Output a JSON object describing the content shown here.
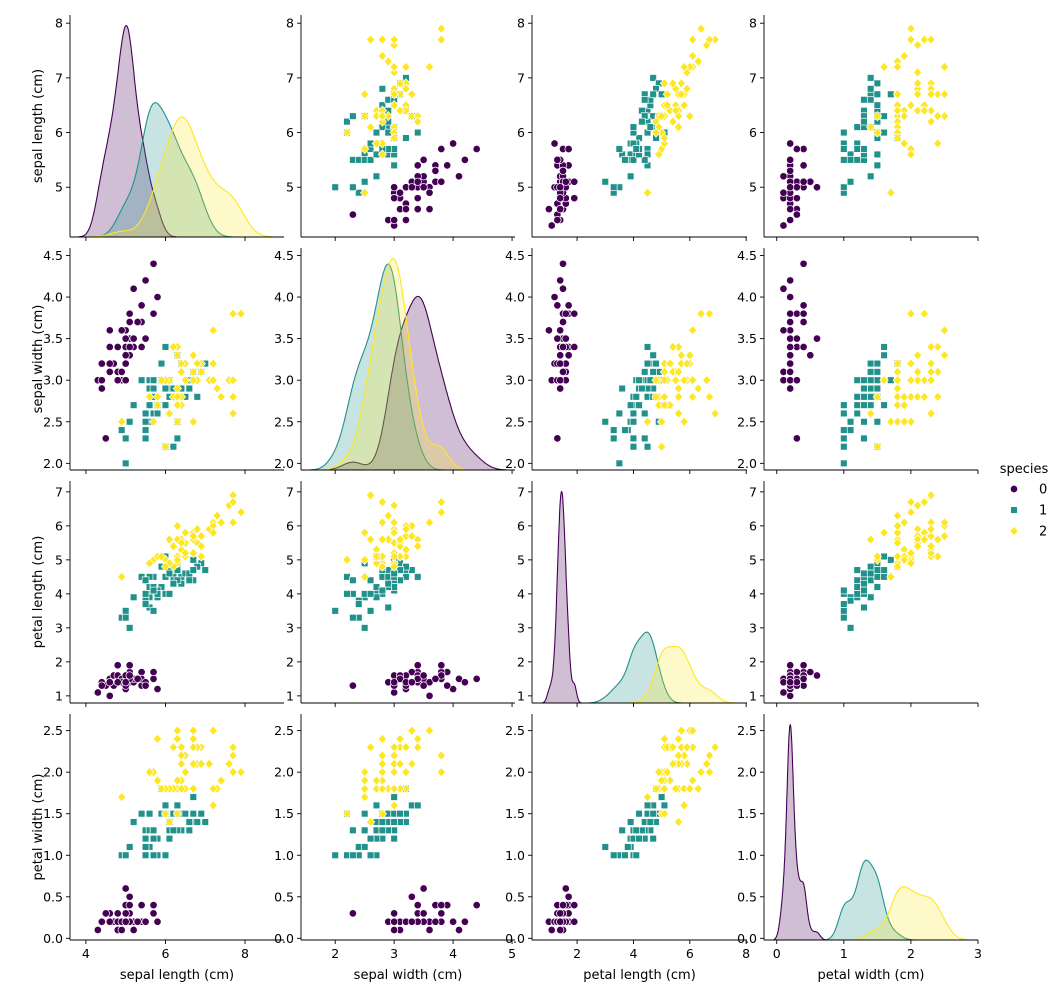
{
  "chart_data": {
    "type": "pairplot",
    "subtypes": {
      "diagonal": "kde",
      "offdiagonal": "scatter"
    },
    "variables": [
      "sepal length (cm)",
      "sepal width (cm)",
      "petal length (cm)",
      "petal width (cm)"
    ],
    "axis_limits": [
      [
        3.6,
        8.98
      ],
      [
        1.42,
        5.05
      ],
      [
        0.4,
        8.03
      ],
      [
        -0.19,
        3.0
      ]
    ],
    "row_limits": [
      [
        4.09,
        8.15
      ],
      [
        1.92,
        4.59
      ],
      [
        0.79,
        7.32
      ],
      [
        -0.02,
        2.7
      ]
    ],
    "x_ticks": [
      [
        "4",
        "6",
        "8"
      ],
      [
        "2",
        "3",
        "4",
        "5"
      ],
      [
        "2",
        "4",
        "6",
        "8"
      ],
      [
        "0",
        "1",
        "2",
        "3"
      ]
    ],
    "y_ticks": [
      [
        "5",
        "6",
        "7",
        "8"
      ],
      [
        "2.0",
        "2.5",
        "3.0",
        "3.5",
        "4.0",
        "4.5"
      ],
      [
        "1",
        "2",
        "3",
        "4",
        "5",
        "6",
        "7"
      ],
      [
        "0.0",
        "0.5",
        "1.0",
        "1.5",
        "2.0",
        "2.5"
      ]
    ],
    "grid": false,
    "legend": {
      "title": "species",
      "placement": "right",
      "entries": [
        "0",
        "1",
        "2"
      ]
    },
    "hue_colors": [
      "#440154",
      "#21918c",
      "#fde725"
    ],
    "hue_markers": [
      "circle",
      "square",
      "diamond"
    ],
    "points": {
      "0": [
        [
          5.1,
          3.5,
          1.4,
          0.2
        ],
        [
          4.9,
          3.0,
          1.4,
          0.2
        ],
        [
          4.7,
          3.2,
          1.3,
          0.2
        ],
        [
          4.6,
          3.1,
          1.5,
          0.2
        ],
        [
          5.0,
          3.6,
          1.4,
          0.2
        ],
        [
          5.4,
          3.9,
          1.7,
          0.4
        ],
        [
          4.6,
          3.4,
          1.4,
          0.3
        ],
        [
          5.0,
          3.4,
          1.5,
          0.2
        ],
        [
          4.4,
          2.9,
          1.4,
          0.2
        ],
        [
          4.9,
          3.1,
          1.5,
          0.1
        ],
        [
          5.4,
          3.7,
          1.5,
          0.2
        ],
        [
          4.8,
          3.4,
          1.6,
          0.2
        ],
        [
          4.8,
          3.0,
          1.4,
          0.1
        ],
        [
          4.3,
          3.0,
          1.1,
          0.1
        ],
        [
          5.8,
          4.0,
          1.2,
          0.2
        ],
        [
          5.7,
          4.4,
          1.5,
          0.4
        ],
        [
          5.4,
          3.9,
          1.3,
          0.4
        ],
        [
          5.1,
          3.5,
          1.4,
          0.3
        ],
        [
          5.7,
          3.8,
          1.7,
          0.3
        ],
        [
          5.1,
          3.8,
          1.5,
          0.3
        ],
        [
          5.4,
          3.4,
          1.7,
          0.2
        ],
        [
          5.1,
          3.7,
          1.5,
          0.4
        ],
        [
          4.6,
          3.6,
          1.0,
          0.2
        ],
        [
          5.1,
          3.3,
          1.7,
          0.5
        ],
        [
          4.8,
          3.4,
          1.9,
          0.2
        ],
        [
          5.0,
          3.0,
          1.6,
          0.2
        ],
        [
          5.0,
          3.4,
          1.6,
          0.4
        ],
        [
          5.2,
          3.5,
          1.5,
          0.2
        ],
        [
          5.2,
          3.4,
          1.4,
          0.2
        ],
        [
          4.7,
          3.2,
          1.6,
          0.2
        ],
        [
          4.8,
          3.1,
          1.6,
          0.2
        ],
        [
          5.4,
          3.4,
          1.5,
          0.4
        ],
        [
          5.2,
          4.1,
          1.5,
          0.1
        ],
        [
          5.5,
          4.2,
          1.4,
          0.2
        ],
        [
          4.9,
          3.1,
          1.5,
          0.2
        ],
        [
          5.0,
          3.2,
          1.2,
          0.2
        ],
        [
          5.5,
          3.5,
          1.3,
          0.2
        ],
        [
          4.9,
          3.6,
          1.4,
          0.1
        ],
        [
          4.4,
          3.0,
          1.3,
          0.2
        ],
        [
          5.1,
          3.4,
          1.5,
          0.2
        ],
        [
          5.0,
          3.5,
          1.3,
          0.3
        ],
        [
          4.5,
          2.3,
          1.3,
          0.3
        ],
        [
          4.4,
          3.2,
          1.3,
          0.2
        ],
        [
          5.0,
          3.5,
          1.6,
          0.6
        ],
        [
          5.1,
          3.8,
          1.9,
          0.4
        ],
        [
          4.8,
          3.0,
          1.4,
          0.3
        ],
        [
          5.1,
          3.8,
          1.6,
          0.2
        ],
        [
          4.6,
          3.2,
          1.4,
          0.2
        ],
        [
          5.3,
          3.7,
          1.5,
          0.2
        ],
        [
          5.0,
          3.3,
          1.4,
          0.2
        ]
      ],
      "1": [
        [
          7.0,
          3.2,
          4.7,
          1.4
        ],
        [
          6.4,
          3.2,
          4.5,
          1.5
        ],
        [
          6.9,
          3.1,
          4.9,
          1.5
        ],
        [
          5.5,
          2.3,
          4.0,
          1.3
        ],
        [
          6.5,
          2.8,
          4.6,
          1.5
        ],
        [
          5.7,
          2.8,
          4.5,
          1.3
        ],
        [
          6.3,
          3.3,
          4.7,
          1.6
        ],
        [
          4.9,
          2.4,
          3.3,
          1.0
        ],
        [
          6.6,
          2.9,
          4.6,
          1.3
        ],
        [
          5.2,
          2.7,
          3.9,
          1.4
        ],
        [
          5.0,
          2.0,
          3.5,
          1.0
        ],
        [
          5.9,
          3.0,
          4.2,
          1.5
        ],
        [
          6.0,
          2.2,
          4.0,
          1.0
        ],
        [
          6.1,
          2.9,
          4.7,
          1.4
        ],
        [
          5.6,
          2.9,
          3.6,
          1.3
        ],
        [
          6.7,
          3.1,
          4.4,
          1.4
        ],
        [
          5.6,
          3.0,
          4.5,
          1.5
        ],
        [
          5.8,
          2.7,
          4.1,
          1.0
        ],
        [
          6.2,
          2.2,
          4.5,
          1.5
        ],
        [
          5.6,
          2.5,
          3.9,
          1.1
        ],
        [
          5.9,
          3.2,
          4.8,
          1.8
        ],
        [
          6.1,
          2.8,
          4.0,
          1.3
        ],
        [
          6.3,
          2.5,
          4.9,
          1.5
        ],
        [
          6.1,
          2.8,
          4.7,
          1.2
        ],
        [
          6.4,
          2.9,
          4.3,
          1.3
        ],
        [
          6.6,
          3.0,
          4.4,
          1.4
        ],
        [
          6.8,
          2.8,
          4.8,
          1.4
        ],
        [
          6.7,
          3.0,
          5.0,
          1.7
        ],
        [
          6.0,
          2.9,
          4.5,
          1.5
        ],
        [
          5.7,
          2.6,
          3.5,
          1.0
        ],
        [
          5.5,
          2.4,
          3.8,
          1.1
        ],
        [
          5.5,
          2.4,
          3.7,
          1.0
        ],
        [
          5.8,
          2.7,
          3.9,
          1.2
        ],
        [
          6.0,
          2.7,
          5.1,
          1.6
        ],
        [
          5.4,
          3.0,
          4.5,
          1.5
        ],
        [
          6.0,
          3.4,
          4.5,
          1.6
        ],
        [
          6.7,
          3.1,
          4.7,
          1.5
        ],
        [
          6.3,
          2.3,
          4.4,
          1.3
        ],
        [
          5.6,
          3.0,
          4.1,
          1.3
        ],
        [
          5.5,
          2.5,
          4.0,
          1.3
        ],
        [
          5.5,
          2.6,
          4.4,
          1.2
        ],
        [
          6.1,
          3.0,
          4.6,
          1.4
        ],
        [
          5.8,
          2.6,
          4.0,
          1.2
        ],
        [
          5.0,
          2.3,
          3.3,
          1.0
        ],
        [
          5.6,
          2.7,
          4.2,
          1.3
        ],
        [
          5.7,
          3.0,
          4.2,
          1.2
        ],
        [
          5.7,
          2.9,
          4.2,
          1.3
        ],
        [
          6.2,
          2.9,
          4.3,
          1.3
        ],
        [
          5.1,
          2.5,
          3.0,
          1.1
        ],
        [
          5.7,
          2.8,
          4.1,
          1.3
        ]
      ],
      "2": [
        [
          6.3,
          3.3,
          6.0,
          2.5
        ],
        [
          5.8,
          2.7,
          5.1,
          1.9
        ],
        [
          7.1,
          3.0,
          5.9,
          2.1
        ],
        [
          6.3,
          2.9,
          5.6,
          1.8
        ],
        [
          6.5,
          3.0,
          5.8,
          2.2
        ],
        [
          7.6,
          3.0,
          6.6,
          2.1
        ],
        [
          4.9,
          2.5,
          4.5,
          1.7
        ],
        [
          7.3,
          2.9,
          6.3,
          1.8
        ],
        [
          6.7,
          2.5,
          5.8,
          1.8
        ],
        [
          7.2,
          3.6,
          6.1,
          2.5
        ],
        [
          6.5,
          3.2,
          5.1,
          2.0
        ],
        [
          6.4,
          2.7,
          5.3,
          1.9
        ],
        [
          6.8,
          3.0,
          5.5,
          2.1
        ],
        [
          5.7,
          2.5,
          5.0,
          2.0
        ],
        [
          5.8,
          2.8,
          5.1,
          2.4
        ],
        [
          6.4,
          3.2,
          5.3,
          2.3
        ],
        [
          6.5,
          3.0,
          5.5,
          1.8
        ],
        [
          7.7,
          3.8,
          6.7,
          2.2
        ],
        [
          7.7,
          2.6,
          6.9,
          2.3
        ],
        [
          6.0,
          2.2,
          5.0,
          1.5
        ],
        [
          6.9,
          3.2,
          5.7,
          2.3
        ],
        [
          5.6,
          2.8,
          4.9,
          2.0
        ],
        [
          7.7,
          2.8,
          6.7,
          2.0
        ],
        [
          6.3,
          2.7,
          4.9,
          1.8
        ],
        [
          6.7,
          3.3,
          5.7,
          2.1
        ],
        [
          7.2,
          3.2,
          6.0,
          1.8
        ],
        [
          6.2,
          2.8,
          4.8,
          1.8
        ],
        [
          6.1,
          3.0,
          4.9,
          1.8
        ],
        [
          6.4,
          2.8,
          5.6,
          2.1
        ],
        [
          7.2,
          3.0,
          5.8,
          1.6
        ],
        [
          7.4,
          2.8,
          6.1,
          1.9
        ],
        [
          7.9,
          3.8,
          6.4,
          2.0
        ],
        [
          6.4,
          2.8,
          5.6,
          2.2
        ],
        [
          6.3,
          2.8,
          5.1,
          1.5
        ],
        [
          6.1,
          2.6,
          5.6,
          1.4
        ],
        [
          7.7,
          3.0,
          6.1,
          2.3
        ],
        [
          6.3,
          3.4,
          5.6,
          2.4
        ],
        [
          6.4,
          3.1,
          5.5,
          1.8
        ],
        [
          6.0,
          3.0,
          4.8,
          1.8
        ],
        [
          6.9,
          3.1,
          5.4,
          2.1
        ],
        [
          6.7,
          3.1,
          5.6,
          2.4
        ],
        [
          6.9,
          3.1,
          5.1,
          2.3
        ],
        [
          5.8,
          2.7,
          5.1,
          1.9
        ],
        [
          6.8,
          3.2,
          5.9,
          2.3
        ],
        [
          6.7,
          3.3,
          5.7,
          2.5
        ],
        [
          6.7,
          3.0,
          5.2,
          2.3
        ],
        [
          6.3,
          2.5,
          5.0,
          1.9
        ],
        [
          6.5,
          3.0,
          5.2,
          2.0
        ],
        [
          6.2,
          3.4,
          5.4,
          2.3
        ],
        [
          5.9,
          3.0,
          5.1,
          1.8
        ]
      ]
    }
  }
}
